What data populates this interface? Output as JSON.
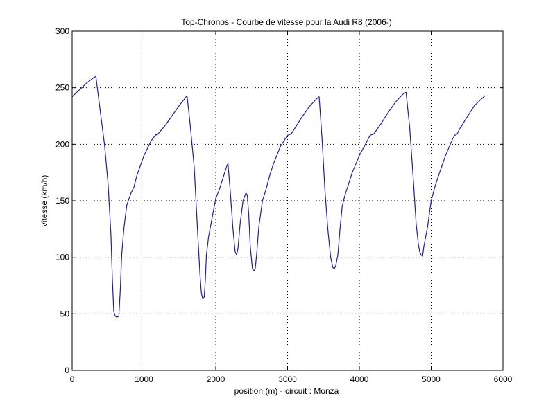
{
  "chart_data": {
    "type": "line",
    "title": "Top-Chronos - Courbe de vitesse pour la Audi R8 (2006-)",
    "xlabel": "position (m) - circuit : Monza",
    "ylabel": "vitesse (km/h)",
    "xlim": [
      0,
      6000
    ],
    "ylim": [
      0,
      300
    ],
    "xticks": [
      0,
      1000,
      2000,
      3000,
      4000,
      5000,
      6000
    ],
    "yticks": [
      0,
      50,
      100,
      150,
      200,
      250,
      300
    ],
    "xtick_labels": [
      "0",
      "1000",
      "2000",
      "3000",
      "4000",
      "5000",
      "6000"
    ],
    "ytick_labels": [
      "0",
      "50",
      "100",
      "150",
      "200",
      "250",
      "300"
    ],
    "grid": true,
    "line_color": "#1f1f9e",
    "series": [
      {
        "x": [
          0,
          100,
          200,
          300,
          330,
          360,
          400,
          450,
          500,
          540,
          560,
          580,
          600,
          620,
          650,
          670,
          690,
          720,
          760,
          820,
          860,
          900,
          1000,
          1100,
          1160,
          1170,
          1180,
          1300,
          1400,
          1500,
          1600,
          1640,
          1700,
          1750,
          1780,
          1800,
          1820,
          1840,
          1855,
          1870,
          1900,
          1950,
          2000,
          2050,
          2100,
          2150,
          2170,
          2200,
          2240,
          2270,
          2290,
          2310,
          2340,
          2380,
          2420,
          2440,
          2460,
          2480,
          2510,
          2530,
          2550,
          2570,
          2600,
          2650,
          2700,
          2750,
          2800,
          2900,
          3000,
          3050,
          3100,
          3200,
          3300,
          3400,
          3440,
          3480,
          3520,
          3560,
          3600,
          3630,
          3650,
          3670,
          3700,
          3730,
          3760,
          3800,
          3850,
          3900,
          4000,
          4100,
          4150,
          4200,
          4300,
          4400,
          4500,
          4600,
          4650,
          4700,
          4750,
          4790,
          4820,
          4840,
          4860,
          4880,
          4900,
          4950,
          5000,
          5050,
          5100,
          5200,
          5300,
          5330,
          5360,
          5400,
          5500,
          5600,
          5700,
          5750
        ],
        "y": [
          242,
          248,
          254,
          259,
          260,
          245,
          225,
          200,
          165,
          120,
          80,
          52,
          48,
          47,
          48,
          70,
          102,
          125,
          146,
          157,
          162,
          172,
          190,
          203,
          208,
          209,
          208,
          217,
          226,
          235,
          243,
          220,
          180,
          120,
          85,
          68,
          63,
          65,
          80,
          102,
          118,
          135,
          152,
          160,
          170,
          180,
          183,
          160,
          125,
          105,
          102,
          108,
          130,
          150,
          157,
          155,
          137,
          110,
          90,
          88,
          90,
          103,
          127,
          150,
          160,
          172,
          182,
          198,
          208,
          209,
          214,
          224,
          233,
          240,
          242,
          205,
          160,
          125,
          100,
          91,
          90,
          92,
          102,
          125,
          145,
          155,
          165,
          175,
          190,
          202,
          208,
          209,
          218,
          228,
          237,
          244,
          246,
          215,
          170,
          130,
          112,
          105,
          102,
          101,
          110,
          127,
          150,
          162,
          172,
          190,
          205,
          208,
          209,
          214,
          224,
          234,
          240,
          243
        ]
      }
    ]
  }
}
